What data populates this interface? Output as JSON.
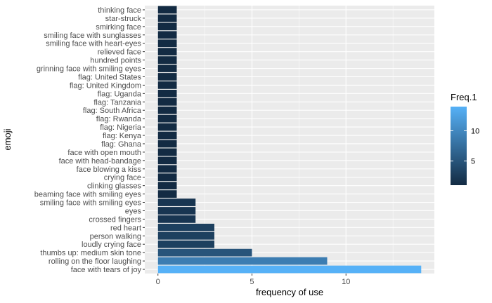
{
  "chart_data": {
    "type": "bar",
    "orientation": "horizontal",
    "categories": [
      "face with tears of joy",
      "rolling on the floor laughing",
      "thumbs up: medium skin tone",
      "loudly crying face",
      "person walking",
      "red heart",
      "crossed fingers",
      "eyes",
      "smiling face with smiling eyes",
      "beaming face with smiling eyes",
      "clinking glasses",
      "crying face",
      "face blowing a kiss",
      "face with head-bandage",
      "face with open mouth",
      "flag: Ghana",
      "flag: Kenya",
      "flag: Nigeria",
      "flag: Rwanda",
      "flag: South Africa",
      "flag: Tanzania",
      "flag: Uganda",
      "flag: United Kingdom",
      "flag: United States",
      "grinning face with smiling eyes",
      "hundred points",
      "relieved face",
      "smiling face with heart-eyes",
      "smiling face with sunglasses",
      "smirking face",
      "star-struck",
      "thinking face"
    ],
    "values": [
      14,
      9,
      5,
      3,
      3,
      3,
      2,
      2,
      2,
      1,
      1,
      1,
      1,
      1,
      1,
      1,
      1,
      1,
      1,
      1,
      1,
      1,
      1,
      1,
      1,
      1,
      1,
      1,
      1,
      1,
      1,
      1
    ],
    "xlabel": "frequency of use",
    "ylabel": "emoji",
    "xlim": [
      -0.7,
      14.7
    ],
    "xticks": [
      0,
      5,
      10
    ],
    "grid": true,
    "panel_background": "#ebebeb",
    "legend": {
      "title": "Freq.1",
      "position": "right",
      "ticks": [
        5,
        10
      ],
      "range": [
        1,
        14
      ],
      "color_low": "#132b43",
      "color_high": "#56b1f7"
    }
  }
}
